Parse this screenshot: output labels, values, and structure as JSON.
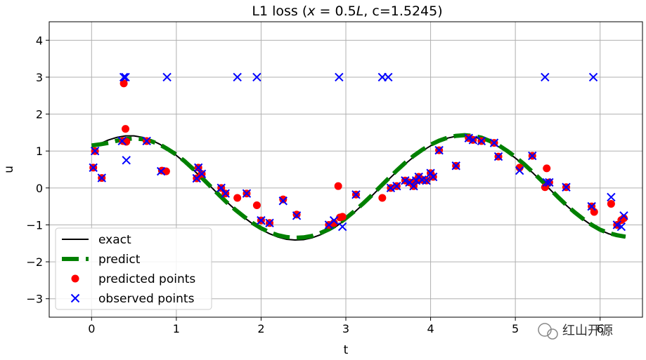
{
  "chart_data": {
    "type": "line",
    "title": "L1 loss (x = 0.5L, c=1.5245)",
    "title_parts": {
      "prefix": "L1 loss (",
      "var_x": "x",
      "eq": " = 0.5",
      "var_L": "L",
      "suffix": ", c=1.5245)"
    },
    "xlabel": "t",
    "ylabel": "u",
    "xlim": [
      -0.5,
      6.5
    ],
    "ylim": [
      -3.5,
      4.5
    ],
    "xticks": [
      0,
      1,
      2,
      3,
      4,
      5,
      6
    ],
    "yticks": [
      -3,
      -2,
      -1,
      0,
      1,
      2,
      3,
      4
    ],
    "xtick_labels": [
      "0",
      "1",
      "2",
      "3",
      "4",
      "5",
      "6"
    ],
    "ytick_labels": [
      "−3",
      "−2",
      "−1",
      "0",
      "1",
      "2",
      "3",
      "4"
    ],
    "grid": true,
    "legend_position": "lower-left",
    "colors": {
      "exact": "#000000",
      "predict": "#008000",
      "predicted_points": "#ff0000",
      "observed_points": "#0000ff",
      "grid": "#b0b0b0"
    },
    "series": [
      {
        "name": "exact",
        "style": "solid",
        "x": [
          0.0,
          0.1,
          0.2,
          0.3,
          0.4,
          0.5,
          0.6,
          0.7,
          0.8,
          0.9,
          1.0,
          1.1,
          1.2,
          1.3,
          1.4,
          1.5,
          1.6,
          1.7,
          1.8,
          1.9,
          2.0,
          2.1,
          2.2,
          2.3,
          2.4,
          2.5,
          2.6,
          2.7,
          2.8,
          2.9,
          3.0,
          3.1,
          3.2,
          3.3,
          3.4,
          3.5,
          3.6,
          3.7,
          3.8,
          3.9,
          4.0,
          4.1,
          4.2,
          4.3,
          4.4,
          4.5,
          4.6,
          4.7,
          4.8,
          4.9,
          5.0,
          5.1,
          5.2,
          5.3,
          5.4,
          5.5,
          5.6,
          5.7,
          5.8,
          5.9,
          6.0,
          6.1,
          6.2,
          6.3
        ],
        "y": [
          1.1,
          1.2,
          1.3,
          1.37,
          1.41,
          1.41,
          1.37,
          1.3,
          1.19,
          1.05,
          0.88,
          0.69,
          0.49,
          0.27,
          0.05,
          -0.18,
          -0.39,
          -0.6,
          -0.8,
          -0.97,
          -1.12,
          -1.24,
          -1.33,
          -1.39,
          -1.41,
          -1.4,
          -1.35,
          -1.27,
          -1.16,
          -1.02,
          -0.85,
          -0.66,
          -0.45,
          -0.23,
          0.0,
          0.22,
          0.44,
          0.65,
          0.84,
          1.0,
          1.14,
          1.26,
          1.35,
          1.4,
          1.41,
          1.39,
          1.33,
          1.24,
          1.12,
          0.98,
          0.81,
          0.62,
          0.42,
          0.2,
          -0.02,
          -0.25,
          -0.47,
          -0.67,
          -0.85,
          -1.01,
          -1.14,
          -1.24,
          -1.3,
          -1.33
        ]
      },
      {
        "name": "predict",
        "style": "dashed",
        "x": [
          0.0,
          0.1,
          0.2,
          0.3,
          0.4,
          0.5,
          0.6,
          0.7,
          0.8,
          0.9,
          1.0,
          1.1,
          1.2,
          1.3,
          1.4,
          1.5,
          1.6,
          1.7,
          1.8,
          1.9,
          2.0,
          2.1,
          2.2,
          2.3,
          2.4,
          2.5,
          2.6,
          2.7,
          2.8,
          2.9,
          3.0,
          3.1,
          3.2,
          3.3,
          3.4,
          3.5,
          3.6,
          3.7,
          3.8,
          3.9,
          4.0,
          4.1,
          4.2,
          4.3,
          4.4,
          4.5,
          4.6,
          4.7,
          4.8,
          4.9,
          5.0,
          5.1,
          5.2,
          5.3,
          5.4,
          5.5,
          5.6,
          5.7,
          5.8,
          5.9,
          6.0,
          6.1,
          6.2,
          6.3
        ],
        "y": [
          1.15,
          1.18,
          1.22,
          1.28,
          1.32,
          1.34,
          1.32,
          1.27,
          1.18,
          1.05,
          0.9,
          0.72,
          0.51,
          0.28,
          0.05,
          -0.18,
          -0.4,
          -0.6,
          -0.78,
          -0.95,
          -1.09,
          -1.2,
          -1.28,
          -1.33,
          -1.35,
          -1.34,
          -1.3,
          -1.22,
          -1.12,
          -0.99,
          -0.82,
          -0.63,
          -0.43,
          -0.21,
          0.02,
          0.25,
          0.47,
          0.68,
          0.87,
          1.03,
          1.17,
          1.28,
          1.36,
          1.41,
          1.43,
          1.41,
          1.36,
          1.27,
          1.16,
          1.01,
          0.84,
          0.65,
          0.44,
          0.22,
          -0.01,
          -0.24,
          -0.46,
          -0.66,
          -0.84,
          -1.0,
          -1.13,
          -1.22,
          -1.28,
          -1.32
        ]
      },
      {
        "name": "predicted points",
        "style": "markers-circle",
        "x": [
          0.02,
          0.04,
          0.12,
          0.37,
          0.38,
          0.4,
          0.41,
          0.65,
          0.83,
          0.88,
          1.24,
          1.26,
          1.3,
          1.53,
          1.58,
          1.72,
          1.83,
          1.95,
          2.0,
          2.1,
          2.26,
          2.42,
          2.8,
          2.86,
          2.91,
          2.93,
          2.96,
          3.12,
          3.43,
          3.53,
          3.6,
          3.7,
          3.75,
          3.8,
          3.83,
          3.86,
          3.9,
          3.95,
          4.0,
          4.03,
          4.1,
          4.3,
          4.45,
          4.5,
          4.6,
          4.75,
          4.8,
          5.05,
          5.2,
          5.35,
          5.37,
          5.4,
          5.6,
          5.9,
          5.93,
          6.13,
          6.2,
          6.25,
          6.28
        ],
        "y": [
          0.55,
          1.0,
          0.27,
          1.27,
          2.83,
          1.6,
          1.25,
          1.27,
          0.47,
          0.45,
          0.26,
          0.55,
          0.38,
          0.0,
          -0.15,
          -0.27,
          -0.15,
          -0.47,
          -0.88,
          -0.95,
          -0.31,
          -0.72,
          -1.0,
          -0.95,
          0.05,
          -0.8,
          -0.78,
          -0.18,
          -0.27,
          0.0,
          0.05,
          0.2,
          0.15,
          0.05,
          0.2,
          0.3,
          0.22,
          0.2,
          0.4,
          0.3,
          1.02,
          0.6,
          1.35,
          1.3,
          1.27,
          1.22,
          0.85,
          0.55,
          0.87,
          0.02,
          0.53,
          0.15,
          0.02,
          -0.5,
          -0.65,
          -0.43,
          -1.0,
          -0.87,
          -0.82
        ]
      },
      {
        "name": "observed points",
        "style": "markers-x",
        "x": [
          0.02,
          0.04,
          0.12,
          0.36,
          0.38,
          0.4,
          0.41,
          0.65,
          0.82,
          0.89,
          1.24,
          1.26,
          1.3,
          1.53,
          1.58,
          1.72,
          1.83,
          1.95,
          2.0,
          2.1,
          2.26,
          2.42,
          2.8,
          2.86,
          2.92,
          2.96,
          3.12,
          3.43,
          3.5,
          3.53,
          3.6,
          3.7,
          3.75,
          3.8,
          3.83,
          3.86,
          3.9,
          3.95,
          4.0,
          4.03,
          4.1,
          4.3,
          4.45,
          4.5,
          4.6,
          4.75,
          4.8,
          5.05,
          5.2,
          5.35,
          5.37,
          5.4,
          5.6,
          5.9,
          5.92,
          6.13,
          6.2,
          6.25,
          6.28
        ],
        "y": [
          0.55,
          1.0,
          0.27,
          1.27,
          3.0,
          3.0,
          0.75,
          1.27,
          0.45,
          3.0,
          0.26,
          0.55,
          0.38,
          0.0,
          -0.15,
          3.0,
          -0.15,
          3.0,
          -0.88,
          -0.95,
          -0.35,
          -0.75,
          -1.0,
          -0.88,
          3.0,
          -1.05,
          -0.18,
          3.0,
          3.0,
          0.0,
          0.05,
          0.2,
          0.15,
          0.05,
          0.2,
          0.3,
          0.22,
          0.2,
          0.4,
          0.3,
          1.02,
          0.6,
          1.35,
          1.3,
          1.27,
          1.22,
          0.85,
          0.47,
          0.87,
          3.0,
          0.15,
          0.15,
          0.02,
          -0.5,
          3.0,
          -0.25,
          -1.0,
          -1.05,
          -0.75
        ]
      }
    ]
  },
  "watermark": {
    "text": "红山开源"
  }
}
